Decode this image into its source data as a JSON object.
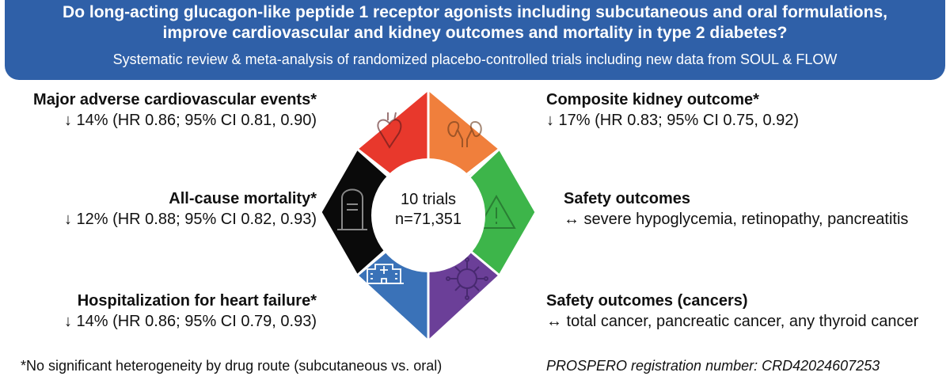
{
  "banner": {
    "title_line1": "Do long-acting glucagon-like peptide 1 receptor agonists including subcutaneous and oral formulations,",
    "title_line2": "improve cardiovascular and kidney outcomes and mortality in type 2 diabetes?",
    "subtitle": "Systematic review & meta-analysis of randomized placebo-controlled trials including  new data from SOUL & FLOW"
  },
  "outcomes": {
    "mace": {
      "title": "Major adverse cardiovascular events*",
      "result": "↓ 14% (HR 0.86; 95% CI 0.81, 0.90)"
    },
    "kidney": {
      "title": "Composite kidney outcome*",
      "result": "↓ 17% (HR 0.83; 95% CI 0.75, 0.92)"
    },
    "mortality": {
      "title": "All-cause mortality*",
      "result": "↓ 12% (HR 0.88; 95% CI 0.82, 0.93)"
    },
    "safety": {
      "title": "Safety outcomes",
      "result": "↔ severe hypoglycemia, retinopathy, pancreatitis"
    },
    "hhf": {
      "title": "Hospitalization for heart failure*",
      "result": "↓ 14% (HR 0.86; 95% CI 0.79, 0.93)"
    },
    "cancer": {
      "title": "Safety outcomes (cancers)",
      "result": "↔ total cancer, pancreatic cancer, any thyroid cancer"
    }
  },
  "center": {
    "line1": "10 trials",
    "line2": "n=71,351"
  },
  "segments": [
    {
      "name": "heart",
      "color": "#e8382c",
      "icon": "heart-icon"
    },
    {
      "name": "kidney",
      "color": "#f07f3c",
      "icon": "kidneys-icon"
    },
    {
      "name": "safety",
      "color": "#3db54a",
      "icon": "warning-icon"
    },
    {
      "name": "cancer",
      "color": "#6b3f98",
      "icon": "virus-icon"
    },
    {
      "name": "hospital",
      "color": "#3a72b8",
      "icon": "hospital-icon"
    },
    {
      "name": "mortality",
      "color": "#0a0a0a",
      "icon": "tombstone-icon"
    }
  ],
  "footer": {
    "footnote": "*No significant heterogeneity by drug route (subcutaneous vs. oral)",
    "registration": "PROSPERO registration number: CRD42024607253"
  }
}
